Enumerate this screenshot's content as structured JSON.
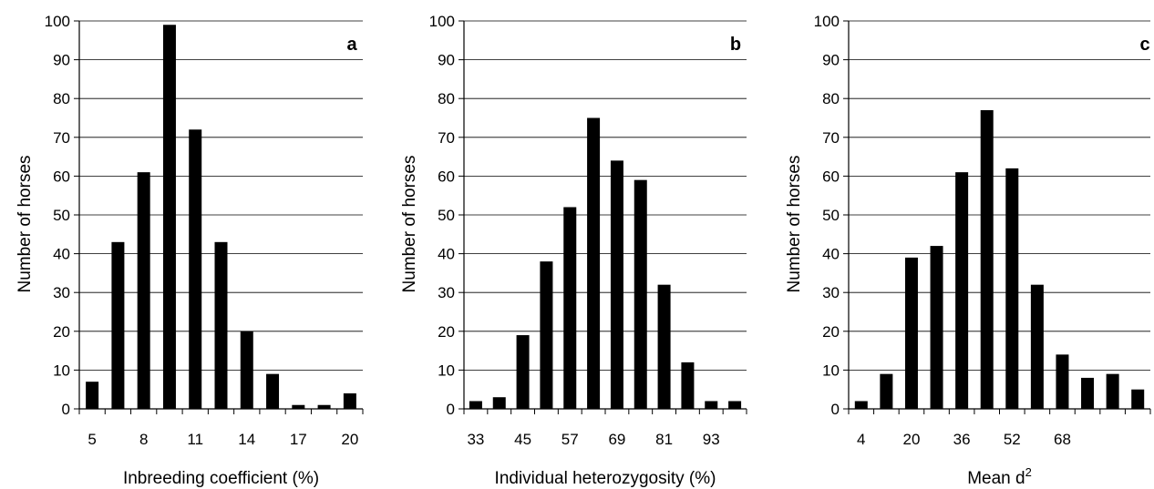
{
  "chart_data": [
    {
      "type": "bar",
      "panel_label": "a",
      "xlabel": "Inbreeding coefficient (%)",
      "ylabel": "Number of horses",
      "ylim": [
        0,
        100
      ],
      "yticks": [
        0,
        10,
        20,
        30,
        40,
        50,
        60,
        70,
        80,
        90,
        100
      ],
      "grid": true,
      "x_tick_labels": [
        "5",
        "8",
        "11",
        "14",
        "17",
        "20"
      ],
      "x_tick_label_every": 2,
      "values": [
        7,
        43,
        61,
        99,
        72,
        43,
        20,
        9,
        1,
        1,
        4
      ]
    },
    {
      "type": "bar",
      "panel_label": "b",
      "xlabel": "Individual heterozygosity (%)",
      "ylabel": "Number of horses",
      "ylim": [
        0,
        100
      ],
      "yticks": [
        0,
        10,
        20,
        30,
        40,
        50,
        60,
        70,
        80,
        90,
        100
      ],
      "grid": true,
      "x_tick_labels": [
        "33",
        "45",
        "57",
        "69",
        "81",
        "93"
      ],
      "x_tick_label_every": 2,
      "values": [
        2,
        3,
        19,
        38,
        52,
        75,
        64,
        59,
        32,
        12,
        2,
        2
      ]
    },
    {
      "type": "bar",
      "panel_label": "c",
      "xlabel": "Mean d",
      "xlabel_superscript": "2",
      "ylabel": "Number of horses",
      "ylim": [
        0,
        100
      ],
      "yticks": [
        0,
        10,
        20,
        30,
        40,
        50,
        60,
        70,
        80,
        90,
        100
      ],
      "grid": true,
      "x_tick_labels": [
        "4",
        "20",
        "36",
        "52",
        "68"
      ],
      "x_tick_label_every": 2,
      "values": [
        2,
        9,
        39,
        42,
        61,
        77,
        62,
        32,
        14,
        8,
        9,
        5
      ]
    }
  ]
}
